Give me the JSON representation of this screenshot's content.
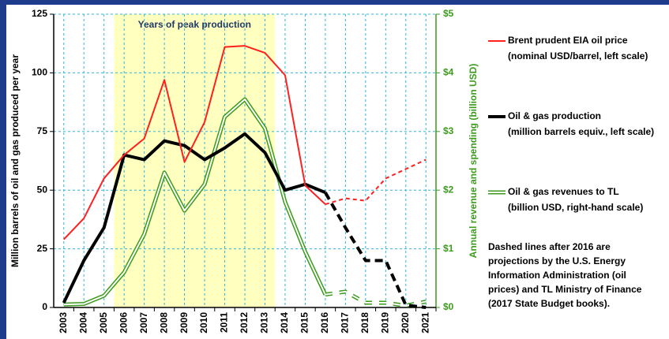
{
  "chart_data": {
    "type": "line",
    "categories": [
      "2003",
      "2004",
      "2005",
      "2006",
      "2007",
      "2008",
      "2009",
      "2010",
      "2011",
      "2012",
      "2013",
      "2014",
      "2015",
      "2016",
      "2017",
      "2018",
      "2019",
      "2020",
      "2021"
    ],
    "ylabel": "Million barrels of oil and gas produced per year",
    "y2label": "Annual revenue and spending (billion USD)",
    "ylim": [
      0,
      125
    ],
    "yticks": [
      0,
      25,
      50,
      75,
      100,
      125
    ],
    "y2lim": [
      0,
      5
    ],
    "y2ticks": [
      {
        "value": 0,
        "label": "$0"
      },
      {
        "value": 1,
        "label": "$1"
      },
      {
        "value": 2,
        "label": "$2"
      },
      {
        "value": 3,
        "label": "$3"
      },
      {
        "value": 4,
        "label": "$4"
      },
      {
        "value": 5,
        "label": "$5"
      }
    ],
    "grid": true,
    "shaded_span": {
      "label": "Years of peak production",
      "from": "2006",
      "to": "2013",
      "color": "#ffffc0"
    },
    "dashed_from": "2016",
    "series": [
      {
        "name": "Brent prudent EIA oil price",
        "description": "(nominal USD/barrel, left scale)",
        "color": "#ff2020",
        "values": [
          29,
          38,
          55,
          65,
          72,
          97,
          62,
          79,
          111,
          111.5,
          108.5,
          99,
          52,
          44,
          46.5,
          45.5,
          55,
          59,
          63
        ]
      },
      {
        "name": "Oil & gas production",
        "description": "(million barrels equiv., left scale)",
        "color": "#000000",
        "values": [
          2,
          20,
          34,
          65,
          63,
          71,
          69,
          63,
          68,
          74,
          66,
          50,
          52.5,
          49,
          34,
          20,
          20,
          1,
          0
        ]
      },
      {
        "name": "Oil & gas revenues to TL",
        "description": "(billion USD, right-hand scale)",
        "color": "#3c9b1c",
        "axis": "y2",
        "values": [
          0.05,
          0.06,
          0.2,
          0.6,
          1.25,
          2.3,
          1.65,
          2.1,
          3.25,
          3.55,
          3.05,
          1.8,
          0.95,
          0.22,
          0.27,
          0.08,
          0.08,
          0.03,
          0.1
        ]
      }
    ],
    "annotation": [
      "Dashed lines after 2016 are",
      "projections by the U.S. Energy",
      "Information Administration (oil",
      "prices) and TL Ministry of Finance",
      "(2017 State Budget books)."
    ]
  }
}
